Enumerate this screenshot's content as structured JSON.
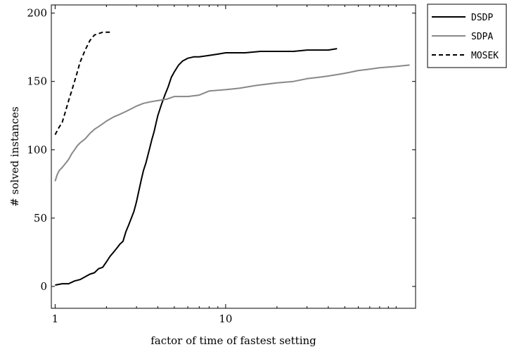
{
  "chart_data": {
    "type": "line",
    "title": "",
    "xlabel": "factor of time of fastest setting",
    "ylabel": "# solved instances",
    "xscale": "log",
    "xlim": [
      0.95,
      130
    ],
    "ylim": [
      -16,
      206
    ],
    "xticks_labeled": [
      {
        "value": 1,
        "label": "1"
      },
      {
        "value": 10,
        "label": "10"
      }
    ],
    "xticks_minor": [
      2,
      3,
      4,
      5,
      6,
      7,
      8,
      9,
      20,
      30,
      40,
      50,
      60,
      70,
      80,
      90,
      100
    ],
    "yticks": [
      {
        "value": 0,
        "label": "0"
      },
      {
        "value": 50,
        "label": "50"
      },
      {
        "value": 100,
        "label": "100"
      },
      {
        "value": 150,
        "label": "150"
      },
      {
        "value": 200,
        "label": "200"
      }
    ],
    "grid": false,
    "legend_position": "outside-top-right",
    "series": [
      {
        "name": "DSDP",
        "color": "#000000",
        "dash": "solid",
        "x": [
          1.0,
          1.1,
          1.2,
          1.3,
          1.4,
          1.5,
          1.6,
          1.7,
          1.8,
          1.9,
          2.0,
          2.1,
          2.2,
          2.3,
          2.4,
          2.5,
          2.6,
          2.7,
          2.8,
          2.9,
          3.0,
          3.1,
          3.2,
          3.3,
          3.4,
          3.5,
          3.6,
          3.7,
          3.8,
          3.9,
          4.0,
          4.2,
          4.4,
          4.6,
          4.8,
          5.0,
          5.3,
          5.6,
          6.0,
          6.5,
          7.0,
          8.0,
          9.0,
          10.0,
          11.0,
          13.0,
          16.0,
          20.0,
          25.0,
          30.0,
          35.0,
          40.0,
          45.0
        ],
        "y": [
          1,
          2,
          2,
          4,
          5,
          7,
          9,
          10,
          13,
          14,
          18,
          22,
          25,
          28,
          31,
          33,
          40,
          45,
          50,
          55,
          62,
          70,
          78,
          85,
          90,
          96,
          102,
          108,
          113,
          119,
          125,
          133,
          140,
          146,
          153,
          157,
          162,
          165,
          167,
          168,
          168,
          169,
          170,
          171,
          171,
          171,
          172,
          172,
          172,
          173,
          173,
          173,
          174
        ]
      },
      {
        "name": "SDPA",
        "color": "#888888",
        "dash": "solid",
        "x": [
          1.0,
          1.03,
          1.06,
          1.1,
          1.15,
          1.2,
          1.25,
          1.3,
          1.35,
          1.4,
          1.5,
          1.6,
          1.7,
          1.8,
          1.9,
          2.0,
          2.2,
          2.4,
          2.6,
          2.8,
          3.0,
          3.3,
          3.6,
          4.0,
          4.5,
          5.0,
          6.0,
          7.0,
          8.0,
          10.0,
          12.0,
          15.0,
          20.0,
          25.0,
          30.0,
          35.0,
          40.0,
          45.0,
          50.0,
          55.0,
          60.0,
          70.0,
          80.0,
          100.0,
          120.0
        ],
        "y": [
          77,
          82,
          85,
          87,
          90,
          93,
          97,
          100,
          103,
          105,
          108,
          112,
          115,
          117,
          119,
          121,
          124,
          126,
          128,
          130,
          132,
          134,
          135,
          136,
          137,
          139,
          139,
          140,
          143,
          144,
          145,
          147,
          149,
          150,
          152,
          153,
          154,
          155,
          156,
          157,
          158,
          159,
          160,
          161,
          162
        ]
      },
      {
        "name": "MOSEK",
        "color": "#000000",
        "dash": "dashed",
        "x": [
          1.0,
          1.05,
          1.1,
          1.15,
          1.2,
          1.25,
          1.3,
          1.35,
          1.4,
          1.5,
          1.6,
          1.7,
          1.8,
          1.9,
          2.0,
          2.1
        ],
        "y": [
          111,
          116,
          120,
          128,
          136,
          143,
          150,
          157,
          164,
          173,
          180,
          184,
          185,
          186,
          186,
          186
        ]
      }
    ]
  }
}
